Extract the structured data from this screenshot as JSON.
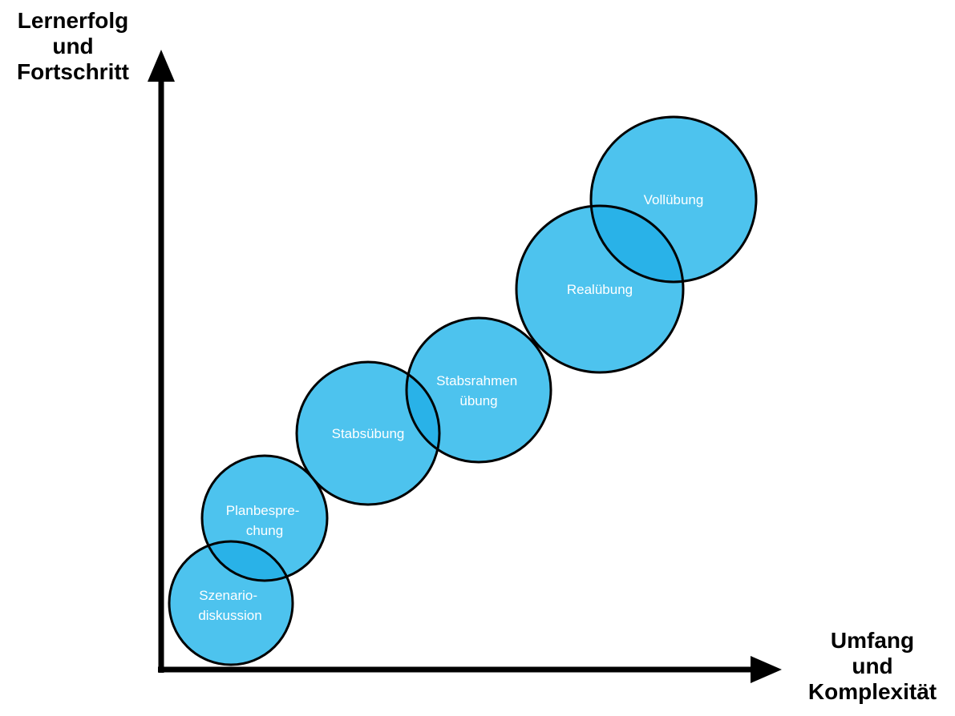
{
  "diagram": {
    "y_axis_label": [
      "Lernerfolg",
      "und",
      "Fortschritt"
    ],
    "x_axis_label": [
      "Umfang",
      "und",
      "Komplexität"
    ],
    "stages": [
      {
        "id": "szenariodiskussion",
        "lines": [
          "Szenario-",
          "diskussion"
        ]
      },
      {
        "id": "planbesprechung",
        "lines": [
          "Planbespre-",
          "chung"
        ]
      },
      {
        "id": "stabsuebung",
        "lines": [
          "Stabsübung"
        ]
      },
      {
        "id": "stabsrahmenuebung",
        "lines": [
          "Stabsrahmen",
          "übung"
        ]
      },
      {
        "id": "realuebung",
        "lines": [
          "Realübung"
        ]
      },
      {
        "id": "volluebung",
        "lines": [
          "Vollübung"
        ]
      }
    ],
    "colors": {
      "circle_fill": "#4dc3ee",
      "overlap_fill": "#29b2e8",
      "circle_stroke": "#000000",
      "axis": "#000000",
      "stage_text": "#ffffff"
    }
  }
}
